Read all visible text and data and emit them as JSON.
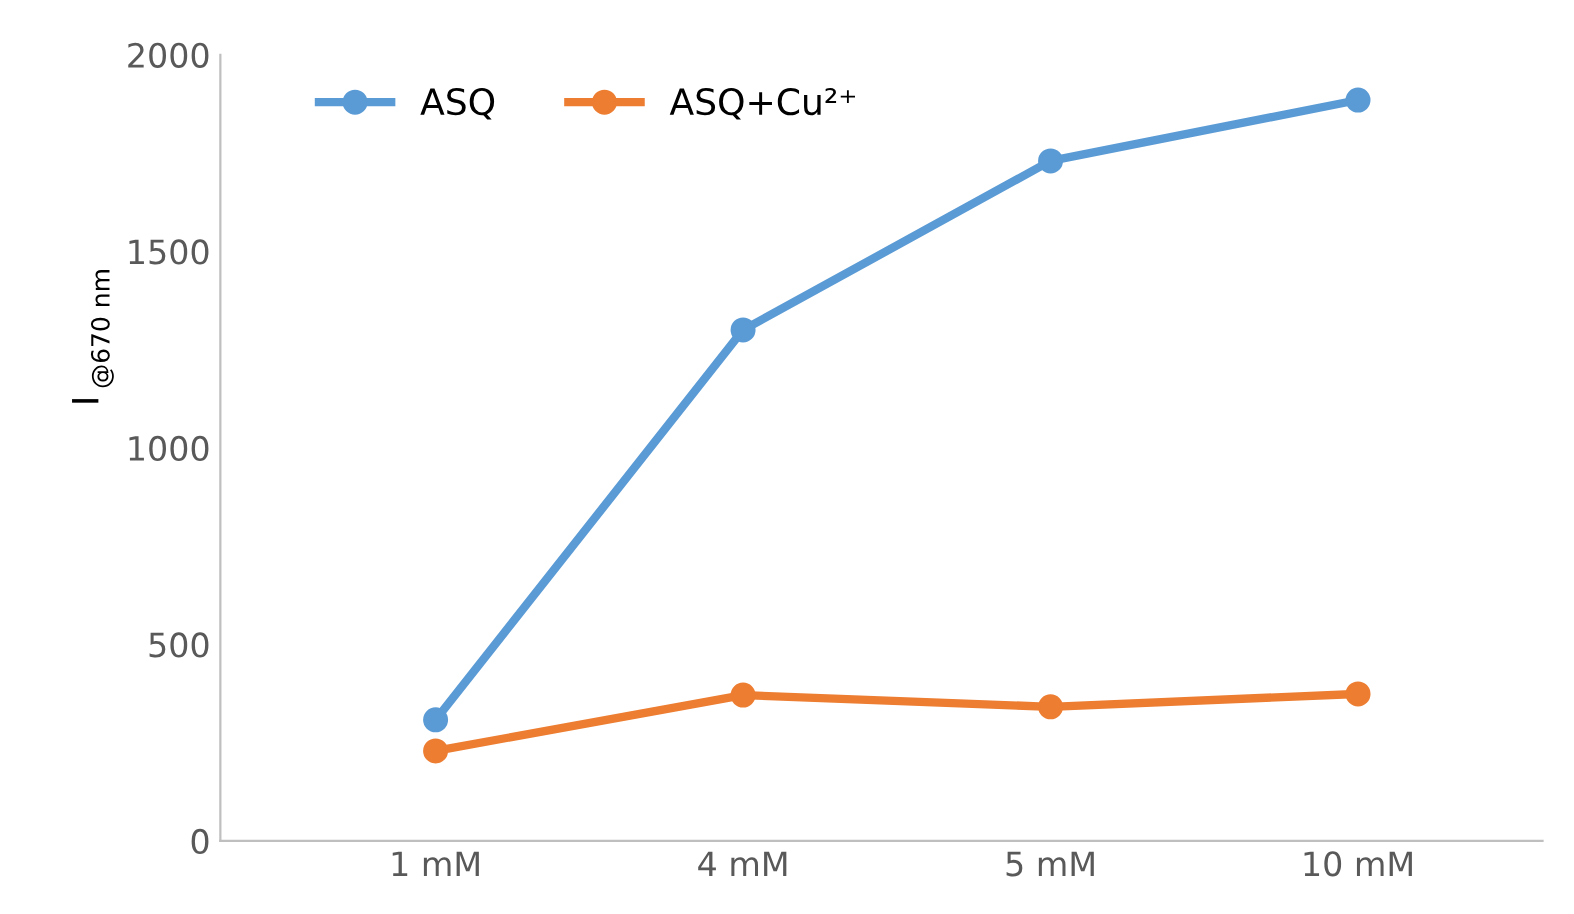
{
  "chart_data": {
    "type": "line",
    "ylabel": "I$_{@670 nm}$",
    "categories": [
      "1 mM",
      "4 mM",
      "5 mM",
      "10 mM"
    ],
    "series": [
      {
        "name": "ASQ",
        "color": "#5b9bd5",
        "values": [
          308,
          1300,
          1730,
          1885
        ]
      },
      {
        "name": "ASQ+Cu²⁺",
        "color": "#ed7d31",
        "values": [
          229,
          371,
          341,
          374
        ]
      }
    ],
    "ylim": [
      0,
      2000
    ],
    "yticks": [
      0,
      500,
      1000,
      1500,
      2000
    ],
    "grid": false,
    "legend": "top left",
    "marker": "circle",
    "line_style": "solid"
  }
}
